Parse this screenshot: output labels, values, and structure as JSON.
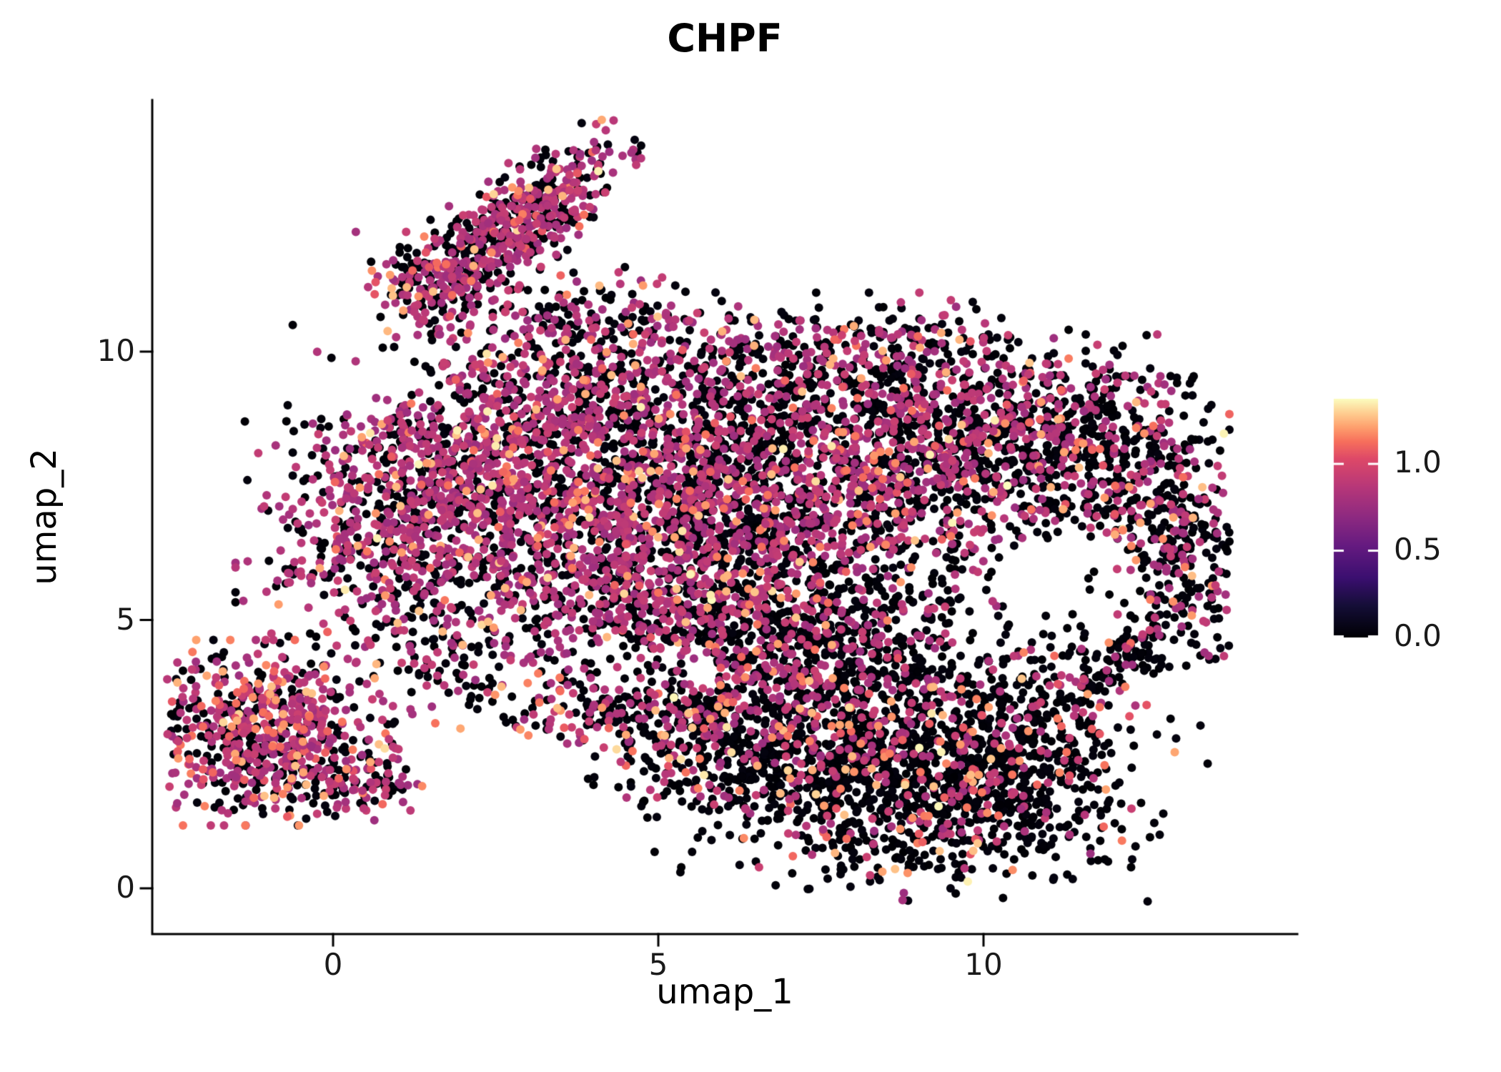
{
  "chart_data": {
    "type": "scatter",
    "title": "CHPF",
    "xlabel": "umap_1",
    "ylabel": "umap_2",
    "x_ticks": [
      0,
      5,
      10
    ],
    "y_ticks": [
      0,
      5,
      10
    ],
    "xlim": [
      -2.8,
      14.8
    ],
    "ylim": [
      -0.85,
      14.7
    ],
    "grid": false,
    "panel_background": "#FFFFFF",
    "axis_color": "#000000",
    "legend": {
      "position": "right",
      "ticks": [
        "1.0",
        "0.5",
        "0.0"
      ],
      "tick_values": [
        1.0,
        0.5,
        0.0
      ],
      "vmin": 0,
      "vmax": 1.375,
      "colormap": "magma",
      "stops": [
        [
          0.0,
          "#000004"
        ],
        [
          0.13,
          "#140E36"
        ],
        [
          0.25,
          "#3B0F70"
        ],
        [
          0.38,
          "#641A80"
        ],
        [
          0.5,
          "#8C2981"
        ],
        [
          0.63,
          "#B73779"
        ],
        [
          0.75,
          "#DE4968"
        ],
        [
          0.82,
          "#F76F5C"
        ],
        [
          0.88,
          "#FE9F6D"
        ],
        [
          0.94,
          "#FECE91"
        ],
        [
          1.0,
          "#FCFDBF"
        ]
      ]
    },
    "points": {
      "seed": 42,
      "radius_px": 6,
      "count_total": 10790,
      "value_categories": {
        "order": [
          "zero",
          "mid",
          "high",
          "max"
        ],
        "zero": [
          0.0,
          0.04
        ],
        "mid": [
          0.75,
          0.95
        ],
        "high": [
          1.05,
          1.28
        ],
        "max": [
          1.3,
          1.375
        ]
      },
      "clusters": [
        [
          2.8,
          12.4,
          1.0,
          0.38,
          42,
          520,
          0.45,
          0.48,
          0.06,
          0.01
        ],
        [
          1.55,
          11.15,
          0.5,
          0.45,
          0,
          150,
          0.48,
          0.46,
          0.06,
          0
        ],
        [
          3.5,
          10.5,
          0.9,
          0.7,
          0,
          150,
          0.6,
          0.35,
          0.05,
          0
        ],
        [
          4.8,
          9.7,
          1.0,
          0.7,
          0,
          260,
          0.55,
          0.4,
          0.05,
          0
        ],
        [
          2.5,
          8.1,
          1.3,
          1.1,
          0,
          900,
          0.42,
          0.5,
          0.07,
          0.01
        ],
        [
          0.9,
          6.6,
          1.0,
          1.0,
          0,
          500,
          0.45,
          0.47,
          0.07,
          0.01
        ],
        [
          4.3,
          6.6,
          1.3,
          1.4,
          0,
          850,
          0.5,
          0.42,
          0.07,
          0.01
        ],
        [
          6.4,
          7.7,
          1.3,
          1.2,
          0,
          900,
          0.55,
          0.38,
          0.06,
          0.01
        ],
        [
          6.0,
          5.0,
          1.4,
          0.9,
          0,
          650,
          0.55,
          0.37,
          0.07,
          0.01
        ],
        [
          8.7,
          7.8,
          1.4,
          1.1,
          0,
          900,
          0.6,
          0.33,
          0.06,
          0.01
        ],
        [
          10.9,
          8.4,
          1.2,
          0.8,
          0,
          560,
          0.6,
          0.32,
          0.07,
          0.01
        ],
        [
          8.2,
          9.9,
          1.2,
          0.5,
          0,
          260,
          0.58,
          0.36,
          0.06,
          0
        ],
        [
          12.4,
          6.9,
          0.7,
          1.1,
          0,
          380,
          0.7,
          0.25,
          0.05,
          0
        ],
        [
          13.2,
          6.2,
          0.4,
          0.9,
          0,
          100,
          0.6,
          0.34,
          0.06,
          0
        ],
        [
          12.0,
          4.0,
          0.8,
          0.9,
          0,
          280,
          0.78,
          0.16,
          0.06,
          0
        ],
        [
          7.8,
          4.2,
          1.3,
          0.9,
          0,
          560,
          0.68,
          0.25,
          0.06,
          0.01
        ],
        [
          9.2,
          1.9,
          1.5,
          0.9,
          -8,
          980,
          0.8,
          0.12,
          0.07,
          0.01
        ],
        [
          6.8,
          2.6,
          1.1,
          0.8,
          0,
          430,
          0.72,
          0.2,
          0.07,
          0.01
        ],
        [
          4.7,
          3.0,
          1.1,
          0.55,
          -12,
          270,
          0.6,
          0.3,
          0.09,
          0.01
        ],
        [
          -1.0,
          2.9,
          0.8,
          0.72,
          0,
          640,
          0.35,
          0.51,
          0.13,
          0.01
        ],
        [
          0.3,
          2.0,
          0.5,
          0.35,
          0,
          110,
          0.5,
          0.4,
          0.1,
          0
        ],
        [
          1.9,
          4.5,
          0.9,
          0.7,
          0,
          140,
          0.55,
          0.38,
          0.07,
          0
        ],
        [
          10.3,
          2.9,
          1.1,
          0.7,
          0,
          300,
          0.8,
          0.13,
          0.07,
          0
        ]
      ],
      "holes": [
        [
          11.35,
          5.6,
          1.1,
          1.15,
          0.85
        ],
        [
          2.6,
          2.2,
          1.3,
          0.75,
          0.9
        ],
        [
          4.7,
          4.15,
          1.2,
          0.45,
          0.7
        ],
        [
          13.1,
          2.8,
          1.3,
          1.3,
          0.85
        ],
        [
          5.7,
          12.4,
          1.5,
          1.2,
          0.8
        ],
        [
          0.5,
          9.9,
          1.2,
          1.0,
          0.6
        ]
      ]
    }
  }
}
